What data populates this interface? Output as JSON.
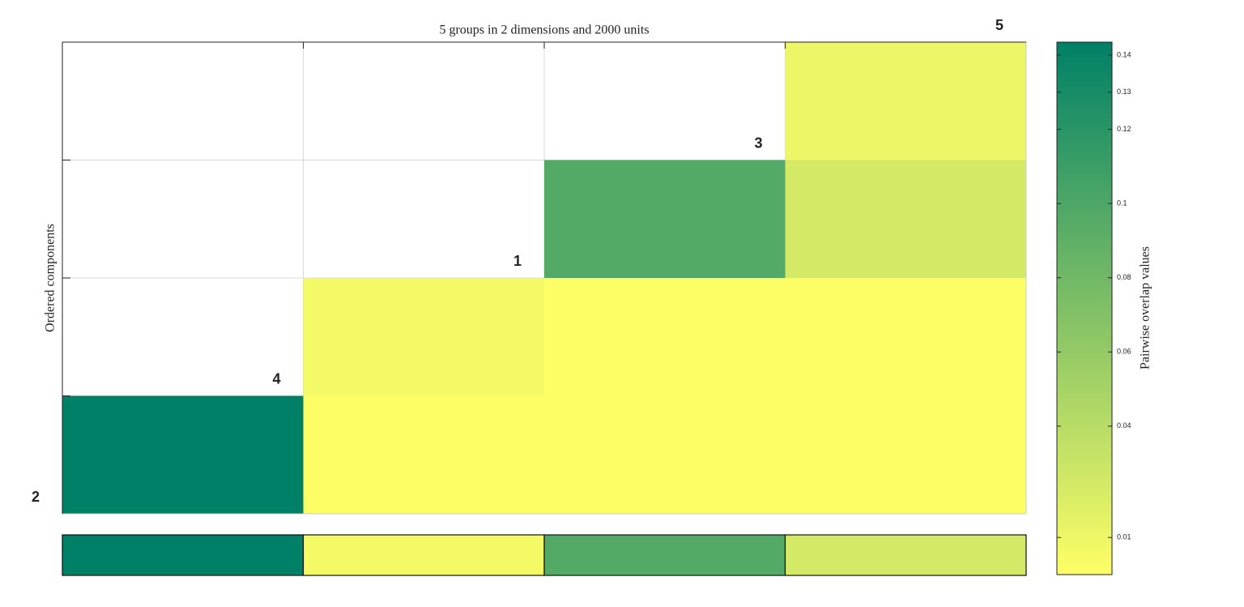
{
  "chart_data": {
    "type": "heatmap",
    "title": "5 groups in 2 dimensions and 2000 units",
    "ylabel": "Ordered components",
    "colorbar_label": "Pairwise overlap values",
    "component_labels": [
      "2",
      "4",
      "1",
      "3",
      "5"
    ],
    "matrix": [
      [
        null,
        null,
        null,
        0.01
      ],
      [
        null,
        null,
        0.097,
        0.024
      ],
      [
        null,
        0.006,
        0.001,
        0.001
      ],
      [
        0.1435,
        0.001,
        0.001,
        0.001
      ]
    ],
    "column_max": [
      0.1435,
      0.006,
      0.097,
      0.024
    ],
    "clim": [
      0,
      0.1435
    ],
    "cticks": [
      0.01,
      0.04,
      0.06,
      0.08,
      0.1,
      0.12,
      0.13,
      0.14
    ],
    "colormap": [
      "#ffff66",
      "#008066"
    ]
  }
}
